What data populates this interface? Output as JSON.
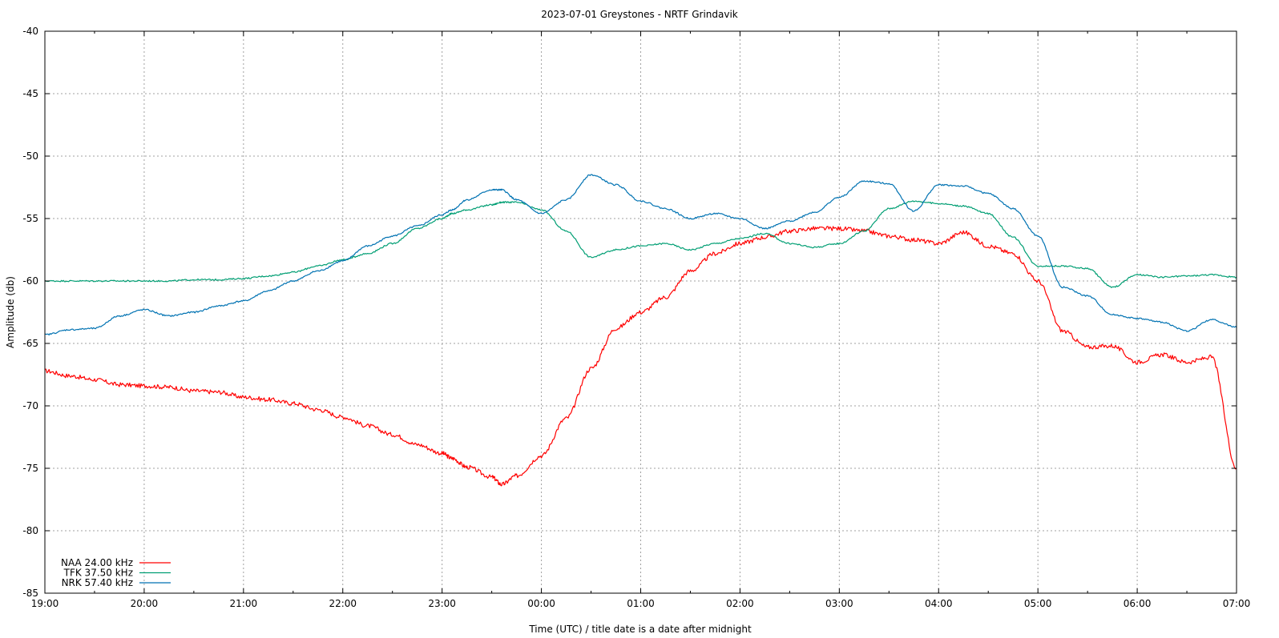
{
  "chart_data": {
    "type": "line",
    "title": "2023-07-01 Greystones - NRTF Grindavik",
    "xlabel": "Time (UTC) / title date is a date after midnight",
    "ylabel": "Amplitude (db)",
    "xlim": [
      "19:00",
      "07:00"
    ],
    "ylim": [
      -85,
      -40
    ],
    "x_ticks": [
      "19:00",
      "20:00",
      "21:00",
      "22:00",
      "23:00",
      "00:00",
      "01:00",
      "02:00",
      "03:00",
      "04:00",
      "05:00",
      "06:00",
      "07:00"
    ],
    "y_ticks": [
      "-40",
      "-45",
      "-50",
      "-55",
      "-60",
      "-65",
      "-70",
      "-75",
      "-80",
      "-85"
    ],
    "grid": true,
    "legend_position": "bottom-left",
    "x_hours_from_1900": [
      0,
      0.25,
      0.5,
      0.75,
      1.0,
      1.25,
      1.5,
      1.75,
      2.0,
      2.25,
      2.5,
      2.75,
      3.0,
      3.25,
      3.5,
      3.75,
      4.0,
      4.1,
      4.25,
      4.5,
      4.6,
      4.75,
      5.0,
      5.25,
      5.5,
      5.75,
      6.0,
      6.25,
      6.5,
      6.75,
      7.0,
      7.25,
      7.5,
      7.75,
      8.0,
      8.25,
      8.5,
      8.75,
      9.0,
      9.25,
      9.5,
      9.75,
      10.0,
      10.25,
      10.5,
      10.75,
      11.0,
      11.25,
      11.5,
      11.75,
      12.0
    ],
    "series": [
      {
        "name": "NAA 24.00 kHz",
        "color": "#ff0000",
        "values": [
          -67.2,
          -67.6,
          -67.9,
          -68.3,
          -68.4,
          -68.5,
          -68.8,
          -68.9,
          -69.3,
          -69.5,
          -69.8,
          -70.3,
          -70.9,
          -71.6,
          -72.3,
          -73.1,
          -73.8,
          -74.2,
          -74.9,
          -75.7,
          -76.3,
          -75.6,
          -74.0,
          -71.0,
          -67.0,
          -63.8,
          -62.5,
          -61.3,
          -59.2,
          -57.8,
          -57.0,
          -56.5,
          -56.0,
          -55.8,
          -55.8,
          -56.0,
          -56.4,
          -56.7,
          -57.0,
          -56.1,
          -57.2,
          -57.8,
          -60.0,
          -64.0,
          -65.3,
          -65.2,
          -66.5,
          -65.9,
          -66.5,
          -66.1,
          -75.0
        ]
      },
      {
        "name": "TFK 37.50 kHz",
        "color": "#009e73",
        "values": [
          -60.0,
          -60.0,
          -60.0,
          -60.0,
          -60.0,
          -60.0,
          -59.9,
          -59.9,
          -59.8,
          -59.6,
          -59.3,
          -58.8,
          -58.3,
          -57.8,
          -57.0,
          -55.8,
          -55.0,
          -54.6,
          -54.3,
          -53.9,
          -53.7,
          -53.7,
          -54.3,
          -56.0,
          -58.1,
          -57.5,
          -57.2,
          -57.0,
          -57.5,
          -57.0,
          -56.6,
          -56.2,
          -57.0,
          -57.3,
          -57.0,
          -56.0,
          -54.2,
          -53.6,
          -53.8,
          -54.0,
          -54.6,
          -56.5,
          -58.8,
          -58.8,
          -59.0,
          -60.5,
          -59.5,
          -59.7,
          -59.6,
          -59.5,
          -59.7
        ]
      },
      {
        "name": "NRK 57.40 kHz",
        "color": "#0072b2",
        "values": [
          -64.3,
          -63.9,
          -63.8,
          -62.8,
          -62.3,
          -62.8,
          -62.5,
          -62.0,
          -61.6,
          -60.8,
          -60.0,
          -59.2,
          -58.4,
          -57.2,
          -56.4,
          -55.6,
          -54.7,
          -54.3,
          -53.5,
          -52.7,
          -52.7,
          -53.5,
          -54.6,
          -53.5,
          -51.5,
          -52.3,
          -53.6,
          -54.2,
          -55.0,
          -54.6,
          -55.0,
          -55.8,
          -55.2,
          -54.5,
          -53.3,
          -52.0,
          -52.2,
          -54.4,
          -52.3,
          -52.4,
          -53.0,
          -54.2,
          -56.4,
          -60.5,
          -61.2,
          -62.7,
          -63.0,
          -63.3,
          -64.0,
          -63.1,
          -63.7
        ]
      }
    ]
  }
}
